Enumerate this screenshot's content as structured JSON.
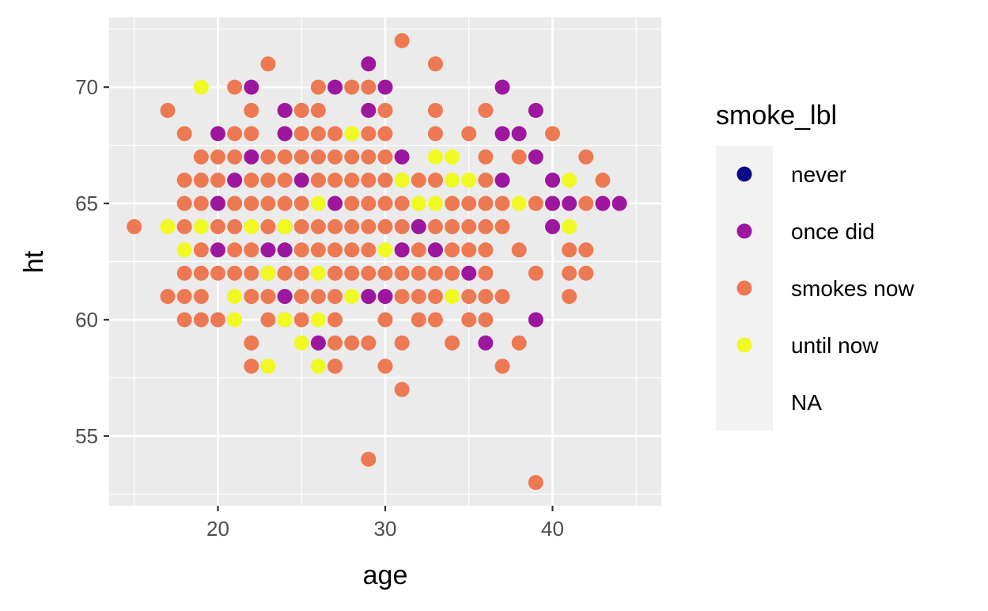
{
  "chart_data": {
    "type": "scatter",
    "title": "",
    "xlabel": "age",
    "ylabel": "ht",
    "xlim": [
      13.5,
      46.5
    ],
    "ylim": [
      52,
      73
    ],
    "x_ticks": [
      20,
      30,
      40
    ],
    "y_ticks": [
      55,
      60,
      65,
      70
    ],
    "grid": true,
    "legend": {
      "title": "smoke_lbl",
      "placement": "right",
      "entries": [
        {
          "label": "never",
          "color": "#0d0887"
        },
        {
          "label": "once did",
          "color": "#9c179e"
        },
        {
          "label": "smokes now",
          "color": "#ed7953"
        },
        {
          "label": "until now",
          "color": "#f0f921"
        },
        {
          "label": "NA",
          "color": null
        }
      ]
    },
    "series": [
      {
        "name": "smokes now",
        "color": "#ed7953",
        "points": [
          [
            15,
            64
          ],
          [
            17,
            69
          ],
          [
            17,
            61
          ],
          [
            18,
            68
          ],
          [
            18,
            66
          ],
          [
            18,
            65
          ],
          [
            18,
            64
          ],
          [
            18,
            62
          ],
          [
            18,
            61
          ],
          [
            18,
            60
          ],
          [
            19,
            67
          ],
          [
            19,
            66
          ],
          [
            19,
            65
          ],
          [
            19,
            63
          ],
          [
            19,
            62
          ],
          [
            19,
            61
          ],
          [
            19,
            60
          ],
          [
            20,
            67
          ],
          [
            20,
            66
          ],
          [
            20,
            65
          ],
          [
            20,
            64
          ],
          [
            20,
            62
          ],
          [
            20,
            60
          ],
          [
            21,
            70
          ],
          [
            21,
            68
          ],
          [
            21,
            67
          ],
          [
            21,
            65
          ],
          [
            21,
            64
          ],
          [
            21,
            63
          ],
          [
            21,
            62
          ],
          [
            22,
            69
          ],
          [
            22,
            68
          ],
          [
            22,
            66
          ],
          [
            22,
            65
          ],
          [
            22,
            63
          ],
          [
            22,
            62
          ],
          [
            22,
            61
          ],
          [
            22,
            59
          ],
          [
            22,
            58
          ],
          [
            23,
            71
          ],
          [
            23,
            67
          ],
          [
            23,
            66
          ],
          [
            23,
            65
          ],
          [
            23,
            64
          ],
          [
            23,
            62
          ],
          [
            23,
            61
          ],
          [
            23,
            60
          ],
          [
            24,
            68
          ],
          [
            24,
            67
          ],
          [
            24,
            66
          ],
          [
            24,
            65
          ],
          [
            24,
            64
          ],
          [
            24,
            62
          ],
          [
            24,
            60
          ],
          [
            25,
            69
          ],
          [
            25,
            68
          ],
          [
            25,
            67
          ],
          [
            25,
            65
          ],
          [
            25,
            64
          ],
          [
            25,
            63
          ],
          [
            25,
            62
          ],
          [
            25,
            61
          ],
          [
            25,
            60
          ],
          [
            26,
            70
          ],
          [
            26,
            69
          ],
          [
            26,
            68
          ],
          [
            26,
            67
          ],
          [
            26,
            66
          ],
          [
            26,
            64
          ],
          [
            26,
            63
          ],
          [
            26,
            61
          ],
          [
            27,
            68
          ],
          [
            27,
            67
          ],
          [
            27,
            66
          ],
          [
            27,
            64
          ],
          [
            27,
            63
          ],
          [
            27,
            62
          ],
          [
            27,
            61
          ],
          [
            27,
            60
          ],
          [
            27,
            59
          ],
          [
            27,
            58
          ],
          [
            28,
            70
          ],
          [
            28,
            67
          ],
          [
            28,
            66
          ],
          [
            28,
            65
          ],
          [
            28,
            64
          ],
          [
            28,
            63
          ],
          [
            28,
            62
          ],
          [
            28,
            59
          ],
          [
            29,
            70
          ],
          [
            29,
            68
          ],
          [
            29,
            67
          ],
          [
            29,
            66
          ],
          [
            29,
            65
          ],
          [
            29,
            64
          ],
          [
            29,
            63
          ],
          [
            29,
            62
          ],
          [
            29,
            61
          ],
          [
            29,
            59
          ],
          [
            29,
            54
          ],
          [
            30,
            69
          ],
          [
            30,
            68
          ],
          [
            30,
            67
          ],
          [
            30,
            66
          ],
          [
            30,
            65
          ],
          [
            30,
            64
          ],
          [
            30,
            62
          ],
          [
            30,
            60
          ],
          [
            30,
            58
          ],
          [
            31,
            72
          ],
          [
            31,
            65
          ],
          [
            31,
            64
          ],
          [
            31,
            62
          ],
          [
            31,
            61
          ],
          [
            31,
            59
          ],
          [
            31,
            57
          ],
          [
            32,
            66
          ],
          [
            32,
            64
          ],
          [
            32,
            63
          ],
          [
            32,
            62
          ],
          [
            32,
            61
          ],
          [
            32,
            60
          ],
          [
            33,
            71
          ],
          [
            33,
            69
          ],
          [
            33,
            68
          ],
          [
            33,
            66
          ],
          [
            33,
            64
          ],
          [
            33,
            62
          ],
          [
            33,
            61
          ],
          [
            33,
            60
          ],
          [
            34,
            65
          ],
          [
            34,
            64
          ],
          [
            34,
            63
          ],
          [
            34,
            62
          ],
          [
            34,
            59
          ],
          [
            35,
            68
          ],
          [
            35,
            65
          ],
          [
            35,
            64
          ],
          [
            35,
            63
          ],
          [
            35,
            61
          ],
          [
            35,
            60
          ],
          [
            36,
            69
          ],
          [
            36,
            67
          ],
          [
            36,
            66
          ],
          [
            36,
            65
          ],
          [
            36,
            64
          ],
          [
            36,
            63
          ],
          [
            36,
            62
          ],
          [
            36,
            61
          ],
          [
            36,
            60
          ],
          [
            37,
            65
          ],
          [
            37,
            64
          ],
          [
            37,
            61
          ],
          [
            37,
            58
          ],
          [
            38,
            67
          ],
          [
            38,
            63
          ],
          [
            38,
            59
          ],
          [
            39,
            65
          ],
          [
            39,
            62
          ],
          [
            39,
            53
          ],
          [
            40,
            68
          ],
          [
            41,
            63
          ],
          [
            41,
            62
          ],
          [
            41,
            61
          ],
          [
            42,
            67
          ],
          [
            42,
            65
          ],
          [
            42,
            63
          ],
          [
            42,
            62
          ],
          [
            43,
            66
          ]
        ]
      },
      {
        "name": "once did",
        "color": "#9c179e",
        "points": [
          [
            20,
            68
          ],
          [
            20,
            65
          ],
          [
            20,
            63
          ],
          [
            21,
            66
          ],
          [
            22,
            70
          ],
          [
            22,
            67
          ],
          [
            23,
            63
          ],
          [
            24,
            69
          ],
          [
            24,
            68
          ],
          [
            24,
            63
          ],
          [
            24,
            61
          ],
          [
            25,
            66
          ],
          [
            26,
            59
          ],
          [
            27,
            70
          ],
          [
            27,
            65
          ],
          [
            29,
            71
          ],
          [
            29,
            69
          ],
          [
            29,
            61
          ],
          [
            30,
            70
          ],
          [
            30,
            61
          ],
          [
            31,
            67
          ],
          [
            31,
            63
          ],
          [
            32,
            64
          ],
          [
            33,
            63
          ],
          [
            35,
            62
          ],
          [
            36,
            59
          ],
          [
            37,
            70
          ],
          [
            37,
            68
          ],
          [
            37,
            66
          ],
          [
            38,
            68
          ],
          [
            39,
            69
          ],
          [
            39,
            67
          ],
          [
            39,
            60
          ],
          [
            40,
            66
          ],
          [
            40,
            65
          ],
          [
            40,
            64
          ],
          [
            41,
            65
          ],
          [
            43,
            65
          ],
          [
            44,
            65
          ]
        ]
      },
      {
        "name": "until now",
        "color": "#f0f921",
        "points": [
          [
            17,
            64
          ],
          [
            18,
            63
          ],
          [
            19,
            70
          ],
          [
            19,
            64
          ],
          [
            21,
            61
          ],
          [
            21,
            60
          ],
          [
            22,
            64
          ],
          [
            23,
            62
          ],
          [
            23,
            58
          ],
          [
            24,
            64
          ],
          [
            24,
            60
          ],
          [
            25,
            59
          ],
          [
            26,
            65
          ],
          [
            26,
            62
          ],
          [
            26,
            60
          ],
          [
            26,
            58
          ],
          [
            28,
            68
          ],
          [
            28,
            61
          ],
          [
            30,
            63
          ],
          [
            31,
            66
          ],
          [
            32,
            65
          ],
          [
            33,
            67
          ],
          [
            33,
            65
          ],
          [
            34,
            67
          ],
          [
            34,
            66
          ],
          [
            34,
            61
          ],
          [
            35,
            66
          ],
          [
            38,
            65
          ],
          [
            41,
            66
          ],
          [
            41,
            64
          ]
        ]
      }
    ]
  }
}
